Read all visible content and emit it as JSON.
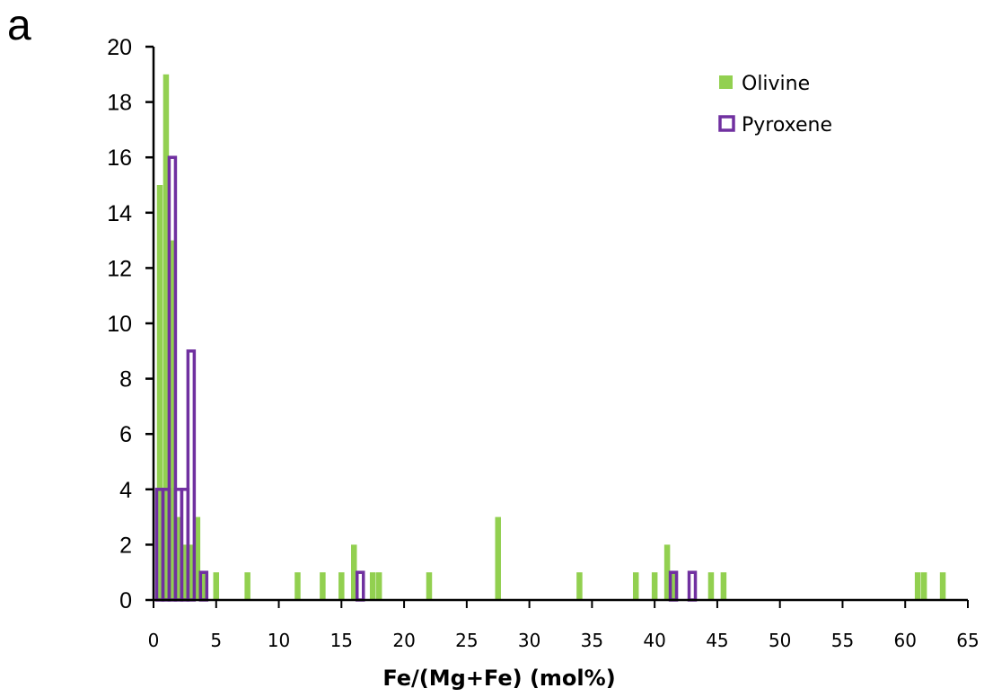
{
  "panel_label": "a",
  "chart_data": {
    "type": "bar",
    "xlabel": "Fe/(Mg+Fe) (mol%)",
    "ylabel": "",
    "xlim": [
      0,
      65
    ],
    "ylim": [
      0,
      20
    ],
    "x_ticks": [
      0,
      5,
      10,
      15,
      20,
      25,
      30,
      35,
      40,
      45,
      50,
      55,
      60,
      65
    ],
    "y_ticks": [
      0,
      2,
      4,
      6,
      8,
      10,
      12,
      14,
      16,
      18,
      20
    ],
    "bin_width": 0.5,
    "legend_position": "top-right",
    "series": [
      {
        "name": "Olivine",
        "style": "filled",
        "color": "#92d050",
        "points": [
          {
            "x": 0.5,
            "y": 15
          },
          {
            "x": 1.0,
            "y": 19
          },
          {
            "x": 1.5,
            "y": 13
          },
          {
            "x": 2.0,
            "y": 3
          },
          {
            "x": 2.5,
            "y": 2
          },
          {
            "x": 3.0,
            "y": 2
          },
          {
            "x": 3.5,
            "y": 3
          },
          {
            "x": 4.0,
            "y": 1
          },
          {
            "x": 5.0,
            "y": 1
          },
          {
            "x": 7.5,
            "y": 1
          },
          {
            "x": 11.5,
            "y": 1
          },
          {
            "x": 13.5,
            "y": 1
          },
          {
            "x": 15.0,
            "y": 1
          },
          {
            "x": 16.0,
            "y": 2
          },
          {
            "x": 17.5,
            "y": 1
          },
          {
            "x": 18.0,
            "y": 1
          },
          {
            "x": 22.0,
            "y": 1
          },
          {
            "x": 27.5,
            "y": 3
          },
          {
            "x": 34.0,
            "y": 1
          },
          {
            "x": 38.5,
            "y": 1
          },
          {
            "x": 40.0,
            "y": 1
          },
          {
            "x": 41.0,
            "y": 2
          },
          {
            "x": 41.5,
            "y": 1
          },
          {
            "x": 44.5,
            "y": 1
          },
          {
            "x": 45.5,
            "y": 1
          },
          {
            "x": 61.0,
            "y": 1
          },
          {
            "x": 61.5,
            "y": 1
          },
          {
            "x": 63.0,
            "y": 1
          }
        ]
      },
      {
        "name": "Pyroxene",
        "style": "outline",
        "color": "#7030a0",
        "points": [
          {
            "x": 0.5,
            "y": 4
          },
          {
            "x": 1.0,
            "y": 4
          },
          {
            "x": 1.5,
            "y": 16
          },
          {
            "x": 2.0,
            "y": 4
          },
          {
            "x": 2.5,
            "y": 4
          },
          {
            "x": 3.0,
            "y": 9
          },
          {
            "x": 4.0,
            "y": 1
          },
          {
            "x": 16.5,
            "y": 1
          },
          {
            "x": 41.5,
            "y": 1
          },
          {
            "x": 43.0,
            "y": 1
          }
        ]
      }
    ]
  }
}
